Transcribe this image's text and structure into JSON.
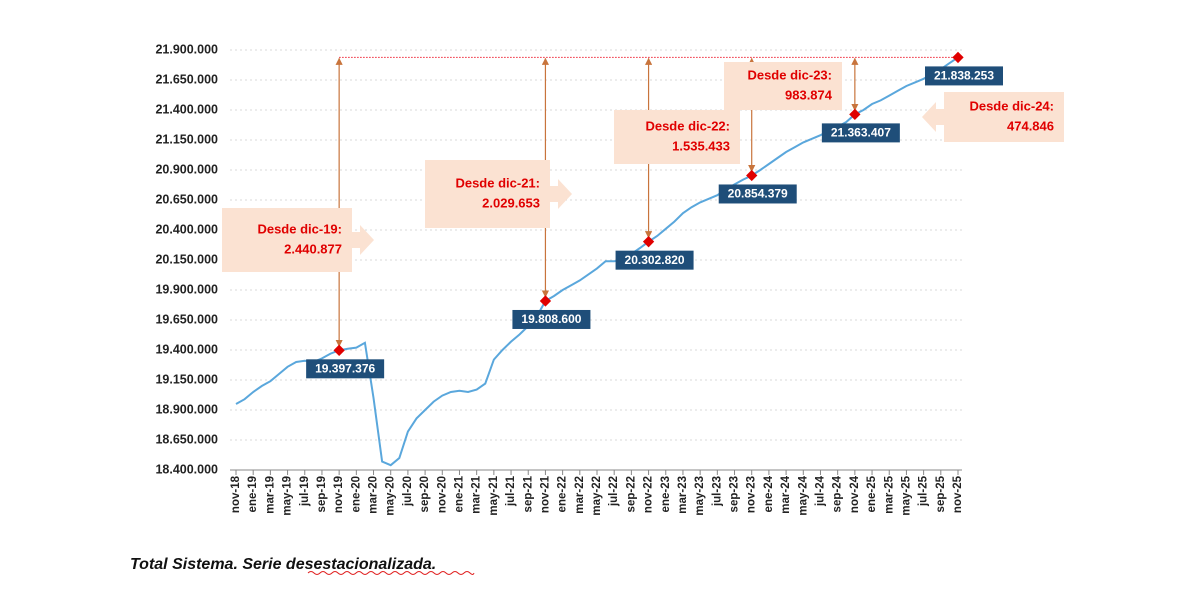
{
  "chart_data": {
    "type": "line",
    "categories": [
      "nov-18",
      null,
      "ene-19",
      null,
      "mar-19",
      null,
      "may-19",
      null,
      "jul-19",
      null,
      "sep-19",
      null,
      "nov-19",
      null,
      "ene-20",
      null,
      "mar-20",
      null,
      "may-20",
      null,
      "jul-20",
      null,
      "sep-20",
      null,
      "nov-20",
      null,
      "ene-21",
      null,
      "mar-21",
      null,
      "may-21",
      null,
      "jul-21",
      null,
      "sep-21",
      null,
      "nov-21",
      null,
      "ene-22",
      null,
      "mar-22",
      null,
      "may-22",
      null,
      "jul-22",
      null,
      "sep-22",
      null,
      "nov-22",
      null,
      "ene-23",
      null,
      "mar-23",
      null,
      "may-23",
      null,
      "jul-23",
      null,
      "sep-23",
      null,
      "nov-23",
      null,
      "ene-24",
      null,
      "mar-24",
      null,
      "may-24",
      null,
      "jul-24",
      null,
      "sep-24",
      null,
      "nov-24",
      null,
      "ene-25",
      null,
      "mar-25",
      null,
      "may-25",
      null,
      "jul-25",
      null,
      "sep-25",
      null,
      "nov-25"
    ],
    "series": [
      {
        "name": "Total Sistema",
        "color": "#5aa7dc",
        "values": [
          18950000,
          18990000,
          19050000,
          19100000,
          19140000,
          19200000,
          19260000,
          19300000,
          19310000,
          19300000,
          19330000,
          19370000,
          19397376,
          19410000,
          19420000,
          19460000,
          19000000,
          18470000,
          18440000,
          18500000,
          18720000,
          18830000,
          18900000,
          18970000,
          19020000,
          19050000,
          19060000,
          19050000,
          19070000,
          19120000,
          19320000,
          19400000,
          19470000,
          19530000,
          19600000,
          19680000,
          19808600,
          19850000,
          19900000,
          19940000,
          19980000,
          20030000,
          20080000,
          20140000,
          20140000,
          20150000,
          20200000,
          20250000,
          20302820,
          20350000,
          20410000,
          20470000,
          20540000,
          20590000,
          20630000,
          20660000,
          20690000,
          20740000,
          20780000,
          20820000,
          20854379,
          20900000,
          20950000,
          21000000,
          21050000,
          21090000,
          21130000,
          21160000,
          21190000,
          21230000,
          21260000,
          21300000,
          21363407,
          21400000,
          21450000,
          21480000,
          21520000,
          21560000,
          21600000,
          21630000,
          21660000,
          21700000,
          21740000,
          21790000,
          21838253
        ],
        "value_labels": [
          null,
          null,
          null,
          null,
          null,
          null,
          null,
          null,
          null,
          null,
          null,
          null,
          "19.397.376",
          null,
          null,
          null,
          null,
          null,
          null,
          null,
          null,
          null,
          null,
          null,
          null,
          null,
          null,
          null,
          null,
          null,
          null,
          null,
          null,
          null,
          null,
          null,
          "19.808.600",
          null,
          null,
          null,
          null,
          null,
          null,
          null,
          null,
          null,
          null,
          null,
          "20.302.820",
          null,
          null,
          null,
          null,
          null,
          null,
          null,
          null,
          null,
          null,
          null,
          "20.854.379",
          null,
          null,
          null,
          null,
          null,
          null,
          null,
          null,
          null,
          null,
          null,
          "21.363.407",
          null,
          null,
          null,
          null,
          null,
          null,
          null,
          null,
          null,
          null,
          null,
          "21.838.253"
        ]
      }
    ],
    "ylim": [
      18400000,
      21900000
    ],
    "yticks": [
      {
        "value": 18400000,
        "label": "18.400.000"
      },
      {
        "value": 18650000,
        "label": "18.650.000"
      },
      {
        "value": 18900000,
        "label": "18.900.000"
      },
      {
        "value": 19150000,
        "label": "19.150.000"
      },
      {
        "value": 19400000,
        "label": "19.400.000"
      },
      {
        "value": 19650000,
        "label": "19.650.000"
      },
      {
        "value": 19900000,
        "label": "19.900.000"
      },
      {
        "value": 20150000,
        "label": "20.150.000"
      },
      {
        "value": 20400000,
        "label": "20.400.000"
      },
      {
        "value": 20650000,
        "label": "20.650.000"
      },
      {
        "value": 20900000,
        "label": "20.900.000"
      },
      {
        "value": 21150000,
        "label": "21.150.000"
      },
      {
        "value": 21400000,
        "label": "21.400.000"
      },
      {
        "value": 21650000,
        "label": "21.650.000"
      },
      {
        "value": 21900000,
        "label": "21.900.000"
      }
    ],
    "grid": true,
    "annotations": [
      {
        "title": "Desde dic-19:",
        "value": 2440877,
        "value_label": "2.440.877"
      },
      {
        "title": "Desde dic-21:",
        "value": 2029653,
        "value_label": "2.029.653"
      },
      {
        "title": "Desde dic-22:",
        "value": 1535433,
        "value_label": "1.535.433"
      },
      {
        "title": "Desde dic-23:",
        "value": 983874,
        "value_label": "983.874"
      },
      {
        "title": "Desde dic-24:",
        "value": 474846,
        "value_label": "474.846"
      }
    ],
    "note": "Total Sistema. Serie desestacionalizada."
  }
}
